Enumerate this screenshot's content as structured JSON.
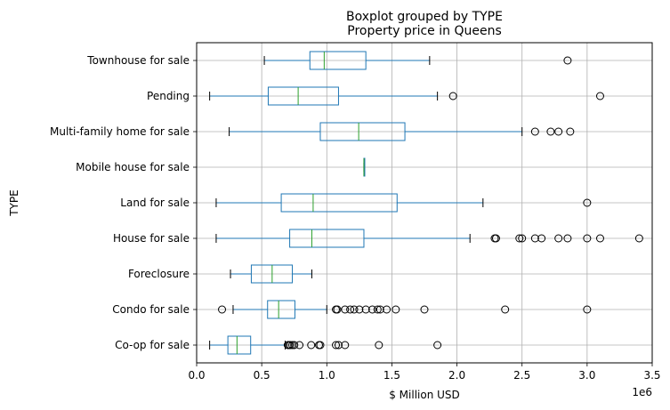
{
  "chart_data": {
    "type": "boxplot",
    "orientation": "horizontal",
    "suptitle": "Boxplot grouped by TYPE",
    "title": "Property price in Queens",
    "xlabel": "$ Million USD",
    "ylabel": "TYPE",
    "x_offset_label": "1e6",
    "xlim": [
      0,
      3500000
    ],
    "x_ticks": [
      0,
      500000,
      1000000,
      1500000,
      2000000,
      2500000,
      3000000,
      3500000
    ],
    "x_tick_labels": [
      "0.0",
      "0.5",
      "1.0",
      "1.5",
      "2.0",
      "2.5",
      "3.0",
      "3.5"
    ],
    "grid": true,
    "colors": {
      "box": "#1f77b4",
      "median": "#2ca02c",
      "grid": "#b0b0b0",
      "flier": "#000000"
    },
    "categories": [
      "Co-op for sale",
      "Condo for sale",
      "Foreclosure",
      "House for sale",
      "Land for sale",
      "Mobile house for sale",
      "Multi-family home for sale",
      "Pending",
      "Townhouse for sale"
    ],
    "boxes": [
      {
        "category": "Co-op for sale",
        "whisker_low": 100000,
        "q1": 240000,
        "median": 310000,
        "q3": 415000,
        "whisker_high": 680000,
        "fliers": [
          700000,
          710000,
          720000,
          735000,
          750000,
          790000,
          880000,
          940000,
          950000,
          1070000,
          1090000,
          1140000,
          1400000,
          1850000
        ]
      },
      {
        "category": "Condo for sale",
        "whisker_low": 280000,
        "q1": 545000,
        "median": 630000,
        "q3": 755000,
        "whisker_high": 1000000,
        "fliers": [
          195000,
          1070000,
          1080000,
          1140000,
          1180000,
          1210000,
          1250000,
          1300000,
          1350000,
          1390000,
          1410000,
          1460000,
          1530000,
          1750000,
          2370000,
          3000000
        ]
      },
      {
        "category": "Foreclosure",
        "whisker_low": 260000,
        "q1": 420000,
        "median": 580000,
        "q3": 735000,
        "whisker_high": 885000,
        "fliers": []
      },
      {
        "category": "House for sale",
        "whisker_low": 150000,
        "q1": 715000,
        "median": 885000,
        "q3": 1285000,
        "whisker_high": 2100000,
        "fliers": [
          2290000,
          2300000,
          2480000,
          2500000,
          2600000,
          2650000,
          2780000,
          2850000,
          3000000,
          3100000,
          3400000
        ]
      },
      {
        "category": "Land for sale",
        "whisker_low": 150000,
        "q1": 650000,
        "median": 895000,
        "q3": 1540000,
        "whisker_high": 2200000,
        "fliers": [
          3000000
        ]
      },
      {
        "category": "Mobile house for sale",
        "whisker_low": 1285000,
        "q1": 1285000,
        "median": 1285000,
        "q3": 1285000,
        "whisker_high": 1285000,
        "fliers": []
      },
      {
        "category": "Multi-family home for sale",
        "whisker_low": 250000,
        "q1": 950000,
        "median": 1245000,
        "q3": 1600000,
        "whisker_high": 2500000,
        "fliers": [
          2600000,
          2720000,
          2780000,
          2870000
        ]
      },
      {
        "category": "Pending",
        "whisker_low": 100000,
        "q1": 550000,
        "median": 780000,
        "q3": 1090000,
        "whisker_high": 1850000,
        "fliers": [
          1970000,
          3100000
        ]
      },
      {
        "category": "Townhouse for sale",
        "whisker_low": 520000,
        "q1": 870000,
        "median": 980000,
        "q3": 1300000,
        "whisker_high": 1790000,
        "fliers": [
          2850000
        ]
      }
    ]
  }
}
